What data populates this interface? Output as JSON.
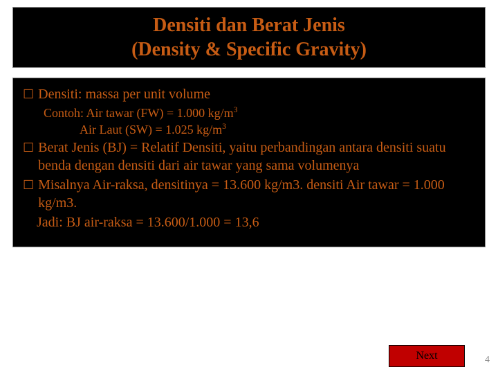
{
  "title": {
    "line1": "Densiti dan Berat Jenis",
    "line2": "(Density & Specific Gravity)"
  },
  "content": {
    "b1": "Densiti: massa per unit volume",
    "s1a": "Contoh: Air tawar (FW) = 1.000 kg/m",
    "s1b": "Air Laut (SW)  = 1.025 kg/m",
    "b2": "Berat Jenis (BJ) = Relatif Densiti, yaitu perbandingan antara densiti suatu benda dengan densiti dari air tawar yang sama volumenya",
    "b3a": "Misalnya Air-raksa, densitinya = 13.600 kg/m3. densiti Air tawar = 1.000 kg/m3.",
    "b3b": "Jadi: BJ air-raksa = 13.600/1.000 = 13,6"
  },
  "nav": {
    "next": "Next"
  },
  "page": "4",
  "colors": {
    "accent": "#c75c14",
    "box_bg": "#000000",
    "next_bg": "#c00000"
  }
}
